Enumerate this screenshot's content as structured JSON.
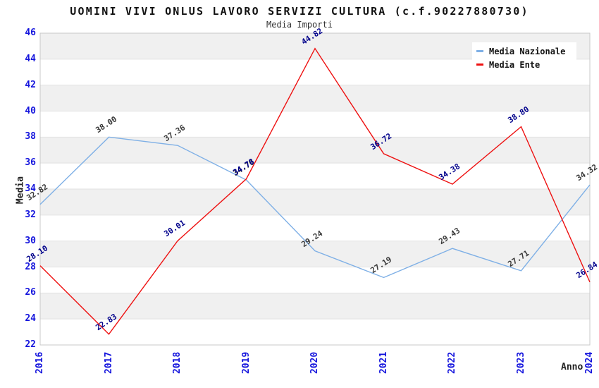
{
  "title": "UOMINI VIVI ONLUS LAVORO SERVIZI CULTURA (c.f.90227880730)",
  "subtitle": "Media Importi",
  "chart_data": {
    "type": "line",
    "x": [
      2016,
      2017,
      2018,
      2019,
      2020,
      2021,
      2022,
      2023,
      2024
    ],
    "series": [
      {
        "name": "Media Nazionale",
        "color": "#7fb0e6",
        "label_color": "#3a3a3a",
        "values": [
          32.82,
          38.0,
          37.36,
          34.7,
          29.24,
          27.19,
          29.43,
          27.71,
          34.32
        ]
      },
      {
        "name": "Media Ente",
        "color": "#ee1111",
        "label_color": "#00008b",
        "values": [
          28.1,
          22.83,
          30.01,
          34.78,
          44.82,
          36.72,
          34.38,
          38.8,
          26.84
        ]
      }
    ],
    "xlabel": "Anno",
    "ylabel": "Media",
    "ylim": [
      22,
      46
    ],
    "ytick_step": 2,
    "grid": true,
    "legend_position": "top-right",
    "axis_tick_color": "#1515dd",
    "band_color": "#f0f0f0",
    "gridline_color": "#e2e2e2",
    "border_color": "#c8c8c8"
  }
}
